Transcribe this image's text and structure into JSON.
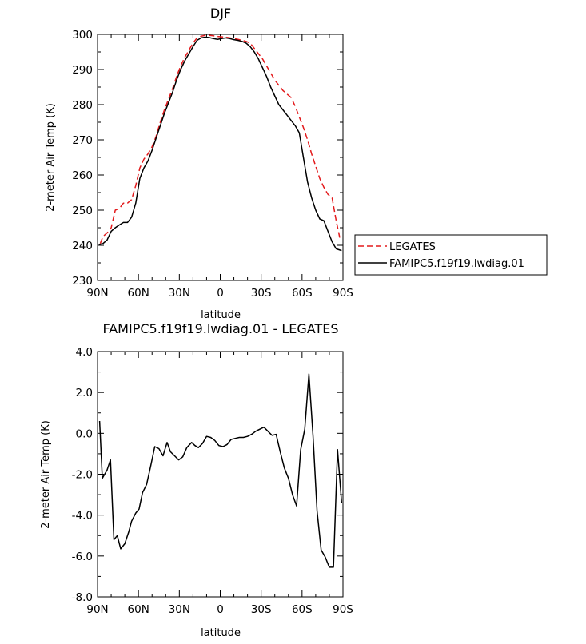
{
  "chart_data": [
    {
      "type": "line",
      "title": "DJF",
      "xlabel": "latitude",
      "ylabel": "2-meter Air Temp (K)",
      "ylim": [
        230,
        300
      ],
      "xlim": [
        90,
        -90
      ],
      "x_ticks": [
        90,
        60,
        30,
        0,
        -30,
        -60,
        -90
      ],
      "x_tick_labels": [
        "90N",
        "60N",
        "30N",
        "0",
        "30S",
        "60S",
        "90S"
      ],
      "y_ticks": [
        230,
        240,
        250,
        260,
        270,
        280,
        290,
        300
      ],
      "y_tick_labels": [
        "230",
        "240",
        "250",
        "260",
        "270",
        "280",
        "290",
        "300"
      ],
      "legend_position": "right",
      "series": [
        {
          "name": "LEGATES",
          "color": "#e31a1c",
          "dashed": true,
          "x": [
            88,
            86,
            83,
            80,
            77,
            74,
            71,
            68,
            65,
            62,
            59,
            56,
            53,
            50,
            47,
            44,
            41,
            38,
            35,
            32,
            29,
            26,
            23,
            20,
            17,
            14,
            11,
            8,
            5,
            2,
            -1,
            -4,
            -7,
            -10,
            -13,
            -16,
            -19,
            -22,
            -25,
            -28,
            -31,
            -34,
            -37,
            -40,
            -43,
            -46,
            -49,
            -52,
            -55,
            -58,
            -61,
            -64,
            -67,
            -70,
            -73,
            -76,
            -79,
            -82,
            -85,
            -88
          ],
          "y": [
            240.5,
            242.5,
            243.5,
            245,
            250,
            250.5,
            252,
            252,
            253,
            257,
            262,
            264.5,
            266,
            268,
            271,
            275,
            278.5,
            281.5,
            284.5,
            288,
            291,
            293.5,
            295.5,
            297.5,
            299,
            299.5,
            299.7,
            299.7,
            299.6,
            299.4,
            299.3,
            299.2,
            299.0,
            298.8,
            298.6,
            298.3,
            298.0,
            297.5,
            296,
            294.5,
            293,
            291,
            289,
            287,
            285.5,
            284,
            283,
            282,
            279.5,
            276.5,
            273.5,
            270,
            266,
            262.5,
            259,
            256.5,
            254.5,
            253.5,
            247,
            241.5
          ]
        },
        {
          "name": "FAMIPC5.f19f19.lwdiag.01",
          "color": "#000000",
          "dashed": false,
          "x": [
            89,
            86,
            83,
            80,
            77,
            74,
            71,
            68,
            65,
            62,
            59,
            56,
            53,
            50,
            47,
            44,
            41,
            38,
            35,
            32,
            29,
            26,
            23,
            20,
            17,
            14,
            11,
            8,
            5,
            2,
            -1,
            -4,
            -7,
            -10,
            -13,
            -16,
            -19,
            -22,
            -25,
            -28,
            -31,
            -34,
            -37,
            -40,
            -43,
            -46,
            -49,
            -52,
            -55,
            -58,
            -61,
            -64,
            -67,
            -70,
            -73,
            -76,
            -79,
            -82,
            -85,
            -89
          ],
          "y": [
            240.2,
            240.5,
            241.5,
            244,
            245,
            245.8,
            246.5,
            246.5,
            248,
            252,
            259,
            262,
            264,
            267,
            270.5,
            274,
            277.5,
            280.5,
            283.5,
            287,
            290,
            292.5,
            294.5,
            296.5,
            298.3,
            299.0,
            299.2,
            299.1,
            298.8,
            298.6,
            298.8,
            299.0,
            298.8,
            298.5,
            298.3,
            298.0,
            297.5,
            296.5,
            295,
            293,
            290.5,
            288,
            285,
            282.5,
            280,
            278.5,
            277,
            275.5,
            274,
            272,
            265,
            258,
            253.5,
            250,
            247.5,
            247,
            244,
            241,
            239,
            238.5
          ]
        }
      ]
    },
    {
      "type": "line",
      "title": "FAMIPC5.f19f19.lwdiag.01 - LEGATES",
      "xlabel": "latitude",
      "ylabel": "2-meter Air Temp (K)",
      "ylim": [
        -8.0,
        4.0
      ],
      "xlim": [
        90,
        -90
      ],
      "x_ticks": [
        90,
        60,
        30,
        0,
        -30,
        -60,
        -90
      ],
      "x_tick_labels": [
        "90N",
        "60N",
        "30N",
        "0",
        "30S",
        "60S",
        "90S"
      ],
      "y_ticks": [
        -8,
        -6,
        -4,
        -2,
        0,
        2,
        4
      ],
      "y_tick_labels": [
        "-8.0",
        "-6.0",
        "-4.0",
        "-2.0",
        "0.0",
        "2.0",
        "4.0"
      ],
      "series": [
        {
          "color": "#000000",
          "x": [
            88.5,
            86.5,
            83,
            80.5,
            78,
            75.5,
            73,
            70,
            67,
            65,
            62,
            59.5,
            57,
            54,
            51,
            48,
            45,
            42,
            39,
            36.5,
            33.5,
            30.5,
            27.5,
            24.5,
            21,
            18.5,
            16,
            13,
            10,
            7,
            4,
            1,
            -2,
            -5,
            -8,
            -11,
            -14,
            -17,
            -20,
            -23,
            -26,
            -29,
            -32,
            -35,
            -38,
            -41,
            -44,
            -47,
            -50,
            -53,
            -56,
            -59,
            -62,
            -65,
            -68,
            -71,
            -74,
            -77,
            -80,
            -83,
            -86,
            -89
          ],
          "y": [
            0.6,
            -2.2,
            -1.8,
            -1.3,
            -5.2,
            -5.0,
            -5.65,
            -5.4,
            -4.8,
            -4.3,
            -3.9,
            -3.7,
            -2.9,
            -2.5,
            -1.6,
            -0.65,
            -0.75,
            -1.1,
            -0.45,
            -0.9,
            -1.1,
            -1.3,
            -1.15,
            -0.7,
            -0.45,
            -0.6,
            -0.7,
            -0.5,
            -0.15,
            -0.2,
            -0.35,
            -0.6,
            -0.65,
            -0.55,
            -0.3,
            -0.25,
            -0.2,
            -0.2,
            -0.15,
            -0.05,
            0.1,
            0.2,
            0.3,
            0.1,
            -0.1,
            -0.05,
            -0.9,
            -1.7,
            -2.2,
            -3.0,
            -3.55,
            -0.8,
            0.2,
            2.9,
            -0.1,
            -3.8,
            -5.7,
            -6.05,
            -6.55,
            -6.55,
            -0.8,
            -3.4
          ]
        }
      ]
    }
  ]
}
